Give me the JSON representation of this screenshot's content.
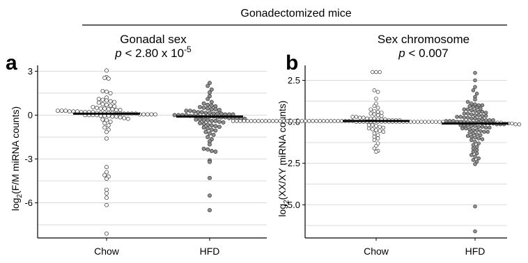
{
  "header": {
    "title": "Gonadectomized mice"
  },
  "chart_data": [
    {
      "type": "scatter",
      "panel_letter": "a",
      "title": "Gonadal sex",
      "pvalue": {
        "prefix": "p",
        "operator": "< 2.80 x 10",
        "exponent": "-5"
      },
      "ylabel": {
        "prefix": "log",
        "sub": "2",
        "rest": "(F/M miRNA counts)"
      },
      "ylim": [
        -8.4,
        3.4
      ],
      "yticks": [
        {
          "value": 3,
          "label": "3"
        },
        {
          "value": 0,
          "label": "0"
        },
        {
          "value": -3,
          "label": "-3"
        },
        {
          "value": -6,
          "label": "-6"
        }
      ],
      "grid": true,
      "categories": [
        "Chow",
        "HFD"
      ],
      "series": [
        {
          "category": "Chow",
          "fill": "#ffffff",
          "median": 0.1,
          "values": [
            3.05,
            2.6,
            2.55,
            2.5,
            1.65,
            1.6,
            1.5,
            1.2,
            1.1,
            1.05,
            1.0,
            0.95,
            0.9,
            0.85,
            0.75,
            0.7,
            0.65,
            0.6,
            0.55,
            0.5,
            0.45,
            0.45,
            0.4,
            0.4,
            0.35,
            0.35,
            0.3,
            0.3,
            0.3,
            0.25,
            0.25,
            0.25,
            0.2,
            0.2,
            0.2,
            0.2,
            0.15,
            0.15,
            0.15,
            0.15,
            0.15,
            0.1,
            0.1,
            0.1,
            0.1,
            0.1,
            0.1,
            0.05,
            0.05,
            0.05,
            0.05,
            0.05,
            0.0,
            0.0,
            0.0,
            0.0,
            -0.05,
            -0.05,
            -0.05,
            -0.1,
            -0.1,
            -0.15,
            -0.2,
            -0.25,
            -0.3,
            -0.35,
            -0.45,
            -0.55,
            -0.7,
            -0.85,
            -1.0,
            -1.15,
            -1.6,
            -3.55,
            -3.9,
            -4.1,
            -4.2,
            -4.35,
            -5.1,
            -5.35,
            -5.65,
            -6.15,
            -8.1
          ]
        },
        {
          "category": "HFD",
          "fill": "#909090",
          "median": -0.1,
          "values": [
            2.2,
            2.0,
            1.75,
            1.55,
            1.3,
            1.1,
            0.9,
            0.8,
            0.7,
            0.65,
            0.6,
            0.55,
            0.5,
            0.45,
            0.4,
            0.4,
            0.35,
            0.3,
            0.3,
            0.25,
            0.2,
            0.2,
            0.15,
            0.15,
            0.1,
            0.1,
            0.1,
            0.05,
            0.05,
            0.05,
            0.0,
            0.0,
            0.0,
            0.0,
            -0.05,
            -0.05,
            -0.05,
            -0.1,
            -0.1,
            -0.1,
            -0.1,
            -0.15,
            -0.15,
            -0.15,
            -0.2,
            -0.2,
            -0.2,
            -0.25,
            -0.25,
            -0.3,
            -0.3,
            -0.35,
            -0.35,
            -0.4,
            -0.4,
            -0.45,
            -0.5,
            -0.55,
            -0.6,
            -0.65,
            -0.7,
            -0.75,
            -0.8,
            -0.85,
            -0.9,
            -1.0,
            -1.05,
            -1.15,
            -1.25,
            -1.35,
            -1.5,
            -1.65,
            -1.8,
            -2.0,
            -2.3,
            -2.35,
            -2.45,
            -2.5,
            -3.1,
            -3.2,
            -4.3,
            -5.5,
            -6.5
          ]
        }
      ]
    },
    {
      "type": "scatter",
      "panel_letter": "b",
      "title": "Sex chromosome",
      "pvalue": {
        "prefix": "p",
        "operator": "< 0.007",
        "exponent": ""
      },
      "ylabel": {
        "prefix": "log",
        "sub": "2",
        "rest": "(XX/XY miRNA counts)"
      },
      "ylim": [
        -7.0,
        3.4
      ],
      "yticks": [
        {
          "value": 2.5,
          "label": "2.5"
        },
        {
          "value": 0,
          "label": "0.0"
        },
        {
          "value": -2.5,
          "label": "-2.5"
        },
        {
          "value": -5,
          "label": "-5.0"
        }
      ],
      "grid": true,
      "categories": [
        "Chow",
        "HFD"
      ],
      "series": [
        {
          "category": "Chow",
          "fill": "#ffffff",
          "median": 0.05,
          "values": [
            3.0,
            3.0,
            3.0,
            1.9,
            1.8,
            1.4,
            1.1,
            0.95,
            0.85,
            0.75,
            0.65,
            0.6,
            0.55,
            0.5,
            0.45,
            0.4,
            0.35,
            0.3,
            0.3,
            0.25,
            0.25,
            0.2,
            0.2,
            0.2,
            0.15,
            0.15,
            0.15,
            0.1,
            0.1,
            0.1,
            0.1,
            0.05,
            0.05,
            0.05,
            0.05,
            0.05,
            0.05,
            0.05,
            0.05,
            0.05,
            0.05,
            0.05,
            0.05,
            0.05,
            0.05,
            0.05,
            0.05,
            0.05,
            0.05,
            0.05,
            0.05,
            0.05,
            0.05,
            0.05,
            0.05,
            0.05,
            0.05,
            0.05,
            0.05,
            0.05,
            0.05,
            0.05,
            0.05,
            0.05,
            0.05,
            0.0,
            0.0,
            0.0,
            0.0,
            0.0,
            0.0,
            0.0,
            0.0,
            0.0,
            0.0,
            0.0,
            0.0,
            0.0,
            0.0,
            0.0,
            0.0,
            0.0,
            0.0,
            0.0,
            0.0,
            0.0,
            0.0,
            0.0,
            0.0,
            0.0,
            0.0,
            0.0,
            0.0,
            0.0,
            0.0,
            -0.05,
            -0.05,
            -0.05,
            -0.05,
            -0.05,
            -0.05,
            -0.05,
            -0.05,
            -0.05,
            -0.05,
            -0.05,
            -0.1,
            -0.1,
            -0.1,
            -0.15,
            -0.15,
            -0.2,
            -0.2,
            -0.25,
            -0.3,
            -0.35,
            -0.4,
            -0.45,
            -0.5,
            -0.55,
            -0.6,
            -0.7,
            -0.8,
            -0.9,
            -1.0,
            -1.1,
            -1.3,
            -1.45,
            -1.6,
            -1.75,
            -1.8
          ]
        },
        {
          "category": "HFD",
          "fill": "#909090",
          "median": -0.1,
          "values": [
            2.95,
            2.5,
            2.1,
            1.9,
            1.7,
            1.5,
            1.35,
            1.2,
            1.1,
            1.05,
            1.0,
            1.0,
            0.95,
            0.9,
            0.85,
            0.8,
            0.75,
            0.75,
            0.7,
            0.65,
            0.6,
            0.6,
            0.55,
            0.5,
            0.5,
            0.45,
            0.4,
            0.4,
            0.35,
            0.35,
            0.3,
            0.3,
            0.25,
            0.25,
            0.2,
            0.2,
            0.15,
            0.15,
            0.1,
            0.1,
            0.1,
            0.05,
            0.05,
            0.05,
            0.0,
            0.0,
            0.0,
            0.0,
            -0.05,
            -0.05,
            -0.05,
            -0.1,
            -0.1,
            -0.1,
            -0.1,
            -0.15,
            -0.15,
            -0.15,
            -0.2,
            -0.2,
            -0.2,
            -0.25,
            -0.25,
            -0.3,
            -0.3,
            -0.35,
            -0.35,
            -0.4,
            -0.4,
            -0.45,
            -0.5,
            -0.5,
            -0.55,
            -0.6,
            -0.6,
            -0.65,
            -0.7,
            -0.75,
            -0.8,
            -0.85,
            -0.9,
            -0.95,
            -1.0,
            -1.05,
            -1.1,
            -1.2,
            -1.3,
            -1.4,
            -1.5,
            -1.6,
            -1.7,
            -1.8,
            -1.9,
            -2.0,
            -2.1,
            -2.2,
            -2.3,
            -2.4,
            -2.55,
            -5.1,
            -6.6
          ]
        }
      ]
    }
  ]
}
